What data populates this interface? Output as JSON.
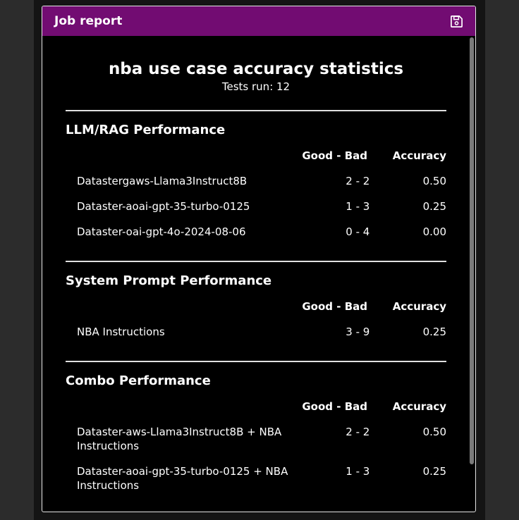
{
  "window": {
    "title": "Job report",
    "save_icon": "floppy-disk-icon"
  },
  "report": {
    "title": "nba use case accuracy statistics",
    "tests_run": "Tests run: 12"
  },
  "columns": {
    "good_bad": "Good - Bad",
    "accuracy": "Accuracy"
  },
  "sections": {
    "llm": {
      "title": "LLM/RAG Performance",
      "rows": [
        {
          "name": "Datastergaws-Llama3Instruct8B",
          "good_bad": "2 - 2",
          "accuracy": "0.50"
        },
        {
          "name": "Dataster-aoai-gpt-35-turbo-0125",
          "good_bad": "1 - 3",
          "accuracy": "0.25"
        },
        {
          "name": "Dataster-oai-gpt-4o-2024-08-06",
          "good_bad": "0 - 4",
          "accuracy": "0.00"
        }
      ]
    },
    "prompt": {
      "title": "System Prompt Performance",
      "rows": [
        {
          "name": "NBA Instructions",
          "good_bad": "3 - 9",
          "accuracy": "0.25"
        }
      ]
    },
    "combo": {
      "title": "Combo Performance",
      "rows": [
        {
          "name": "Dataster-aws-Llama3Instruct8B + NBA Instructions",
          "good_bad": "2 - 2",
          "accuracy": "0.50"
        },
        {
          "name": "Dataster-aoai-gpt-35-turbo-0125 + NBA Instructions",
          "good_bad": "1 - 3",
          "accuracy": "0.25"
        }
      ]
    }
  }
}
